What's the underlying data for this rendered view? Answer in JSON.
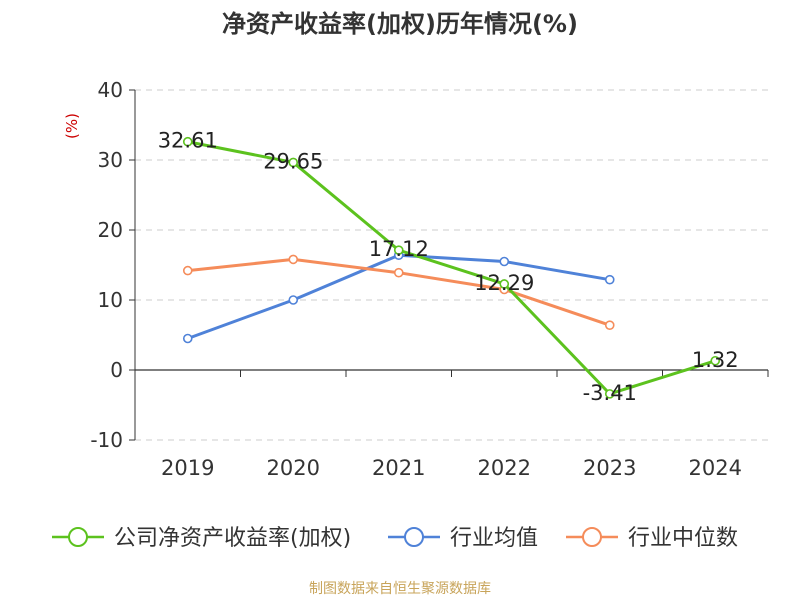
{
  "chart_data": {
    "type": "line",
    "title": "净资产收益率(加权)历年情况(%)",
    "ylabel": "(%)",
    "xlabel": "",
    "categories": [
      "2019",
      "2020",
      "2021",
      "2022",
      "2023",
      "2024"
    ],
    "ylim": [
      -10,
      40
    ],
    "yticks": [
      "-10",
      "0",
      "10",
      "20",
      "30",
      "40"
    ],
    "grid": true,
    "legend_position": "bottom",
    "series": [
      {
        "name": "公司净资产收益率(加权)",
        "color": "#5cc21e",
        "values": [
          32.61,
          29.65,
          17.12,
          12.29,
          -3.41,
          1.32
        ],
        "labels": [
          "32.61",
          "29.65",
          "17.12",
          "12.29",
          "-3.41",
          "1.32"
        ]
      },
      {
        "name": "行业均值",
        "color": "#4f82d8",
        "values": [
          4.5,
          10.0,
          16.4,
          15.5,
          12.9,
          null
        ]
      },
      {
        "name": "行业中位数",
        "color": "#f58c5a",
        "values": [
          14.2,
          15.8,
          13.9,
          11.5,
          6.4,
          null
        ]
      }
    ]
  },
  "source_note": "制图数据来自恒生聚源数据库"
}
